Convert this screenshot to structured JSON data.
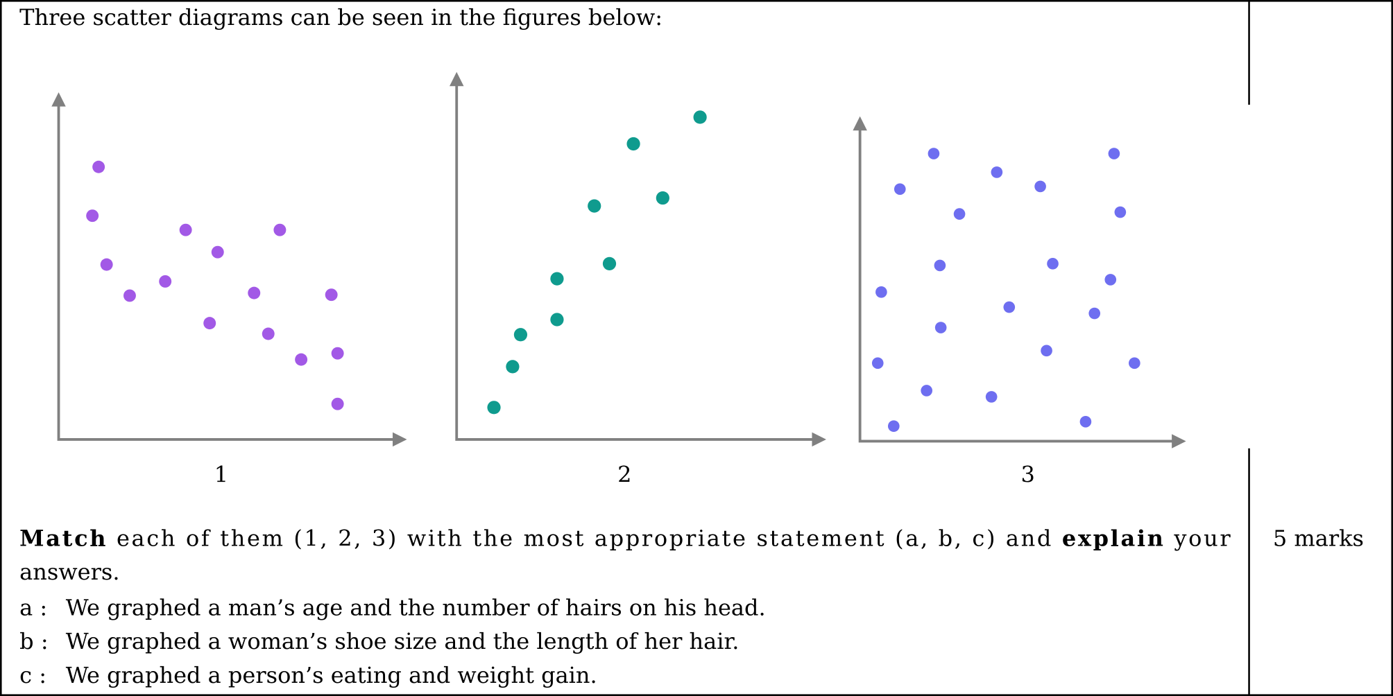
{
  "intro": "Three scatter diagrams can be seen in the figures below:",
  "figures": [
    "1",
    "2",
    "3"
  ],
  "question": {
    "line1": [
      {
        "text": "Match",
        "bold": true
      },
      {
        "text": " each of them (1, 2, 3) with the most appropriate statement (a, b, c) and ",
        "bold": false
      },
      {
        "text": "explain",
        "bold": true
      },
      {
        "text": " your",
        "bold": false
      }
    ],
    "line2": "answers."
  },
  "statements": [
    {
      "label": "a :",
      "text": "We graphed a man’s age and the number of hairs on his head."
    },
    {
      "label": "b :",
      "text": "We graphed a woman’s shoe size and the length of her hair."
    },
    {
      "label": "c :",
      "text": "We graphed a person’s eating and weight gain."
    }
  ],
  "marks": "5 marks"
}
